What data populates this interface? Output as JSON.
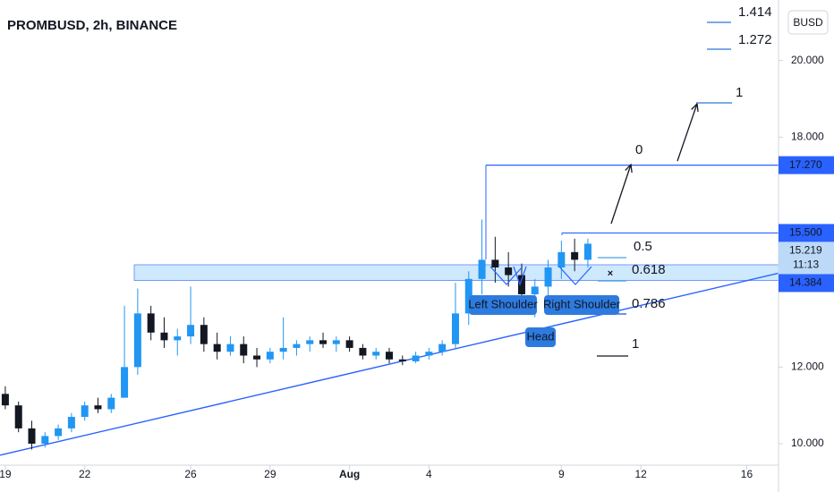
{
  "chart_data": {
    "type": "candlestick",
    "title": "PROMBUSD, 2h, BINANCE",
    "currency": "BUSD",
    "countdown": "11:13",
    "x": [
      0,
      0.5,
      1,
      1.5,
      2,
      2.5,
      3,
      3.5,
      4,
      4.5,
      5,
      5.5,
      6,
      6.5,
      7,
      7.5,
      8,
      8.5,
      9,
      9.5,
      10,
      10.5,
      11,
      11.5,
      12,
      12.5,
      13,
      13.5,
      14,
      14.5,
      15,
      15.5,
      16,
      16.5,
      17,
      17.5,
      18,
      18.5,
      19,
      19.5,
      20,
      20.5,
      21,
      21.5,
      22
    ],
    "open": [
      11.3,
      11.0,
      10.4,
      10.0,
      10.2,
      10.4,
      10.7,
      11.0,
      10.9,
      11.2,
      12.0,
      13.4,
      12.9,
      12.7,
      12.8,
      13.1,
      12.6,
      12.4,
      12.6,
      12.3,
      12.2,
      12.4,
      12.5,
      12.6,
      12.7,
      12.6,
      12.7,
      12.5,
      12.3,
      12.4,
      12.2,
      12.15,
      12.3,
      12.4,
      12.6,
      13.4,
      14.3,
      14.8,
      14.6,
      14.4,
      13.9,
      14.1,
      14.6,
      15.0,
      14.8
    ],
    "high": [
      11.5,
      11.1,
      10.6,
      10.3,
      10.5,
      10.8,
      11.1,
      11.2,
      11.3,
      13.6,
      14.05,
      13.6,
      13.3,
      13.0,
      14.1,
      13.3,
      12.9,
      12.8,
      12.8,
      12.5,
      12.5,
      13.3,
      12.7,
      12.8,
      12.9,
      12.8,
      12.8,
      12.6,
      12.5,
      12.5,
      12.3,
      12.4,
      12.5,
      12.7,
      14.2,
      14.5,
      15.85,
      15.4,
      15.0,
      14.7,
      14.3,
      14.8,
      15.3,
      15.35,
      15.35
    ],
    "low": [
      10.9,
      10.3,
      9.85,
      9.9,
      10.1,
      10.3,
      10.6,
      10.8,
      10.8,
      11.2,
      11.8,
      12.7,
      12.5,
      12.3,
      12.6,
      12.4,
      12.2,
      12.3,
      12.1,
      12.0,
      12.1,
      12.2,
      12.3,
      12.4,
      12.5,
      12.4,
      12.4,
      12.2,
      12.2,
      12.1,
      12.05,
      12.1,
      12.2,
      12.3,
      12.5,
      13.1,
      13.9,
      14.2,
      14.1,
      13.7,
      13.3,
      13.8,
      14.3,
      14.5,
      14.6
    ],
    "close": [
      11.0,
      10.4,
      10.0,
      10.2,
      10.4,
      10.7,
      11.0,
      10.9,
      11.2,
      12.0,
      13.4,
      12.9,
      12.7,
      12.8,
      13.1,
      12.6,
      12.4,
      12.6,
      12.3,
      12.2,
      12.4,
      12.5,
      12.6,
      12.7,
      12.6,
      12.7,
      12.5,
      12.3,
      12.4,
      12.2,
      12.15,
      12.3,
      12.4,
      12.6,
      13.4,
      14.3,
      14.8,
      14.6,
      14.4,
      13.9,
      14.1,
      14.6,
      15.0,
      14.8,
      15.219
    ],
    "up_color": "#2196f3",
    "down_color": "#131722",
    "xlim": [
      -0.2,
      29.2
    ],
    "ylim": [
      9.44,
      21.58
    ],
    "xticks": [
      {
        "value": 0,
        "label": "19"
      },
      {
        "value": 3,
        "label": "22"
      },
      {
        "value": 7,
        "label": "26"
      },
      {
        "value": 10,
        "label": "29"
      },
      {
        "value": 13,
        "label": "Aug"
      },
      {
        "value": 16,
        "label": "4"
      },
      {
        "value": 21,
        "label": "9"
      },
      {
        "value": 24,
        "label": "12"
      },
      {
        "value": 28,
        "label": "16"
      }
    ],
    "yticks": [
      {
        "value": 10,
        "label": "10.000"
      },
      {
        "value": 12,
        "label": "12.000"
      },
      {
        "value": 18,
        "label": "18.000"
      },
      {
        "value": 20,
        "label": "20.000"
      }
    ],
    "price_labels": [
      {
        "value": 17.27,
        "label": "17.270"
      },
      {
        "value": 15.5,
        "label": "15.500"
      },
      {
        "value": 15.219,
        "label": "15.219"
      },
      {
        "value": 14.384,
        "label": "14.384"
      }
    ],
    "zone": [
      14.26,
      14.67
    ],
    "trendline": {
      "x": [
        -0.2,
        29.2
      ],
      "y": [
        9.7,
        14.45
      ]
    },
    "fib_labels": [
      "0",
      "0.5",
      "0.618",
      "0.786",
      "1",
      "1.272",
      "1.414",
      "1"
    ],
    "pattern_labels": [
      "Left Shoulder",
      "Head",
      "Right Shoulder"
    ]
  }
}
